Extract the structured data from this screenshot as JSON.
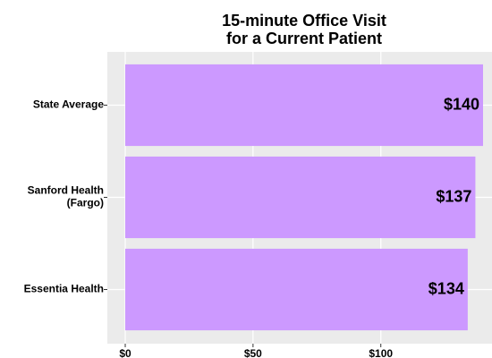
{
  "chart_data": {
    "type": "bar",
    "orientation": "horizontal",
    "title": "15-minute Office Visit\nfor a Current Patient",
    "categories": [
      "State Average",
      "Sanford Health\n(Fargo)",
      "Essentia Health"
    ],
    "values": [
      140,
      137,
      134
    ],
    "value_labels": [
      "$140",
      "$137",
      "$134"
    ],
    "color": "#cc99ff",
    "xlim": [
      -7,
      147
    ],
    "xticks": [
      {
        "value": 0,
        "label": "$0"
      },
      {
        "value": 50,
        "label": "$50"
      },
      {
        "value": 100,
        "label": "$100"
      }
    ],
    "grid": true
  }
}
